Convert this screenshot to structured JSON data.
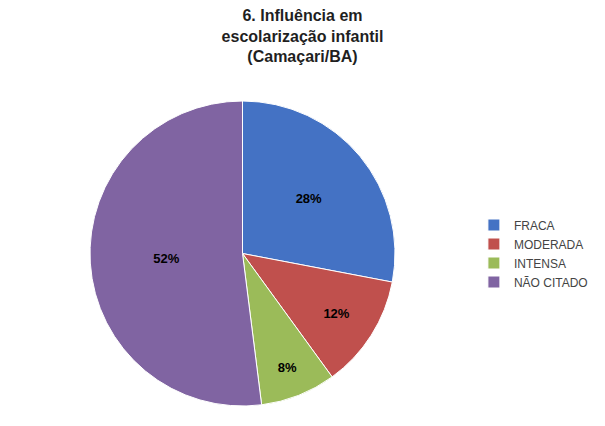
{
  "chart_data": {
    "type": "pie",
    "title": "6. Influência em\nescolarização infantil\n(Camaçari/BA)",
    "categories": [
      "FRACA",
      "MODERADA",
      "INTENSA",
      "NÃO CITADO"
    ],
    "values": [
      28,
      12,
      8,
      52
    ],
    "value_labels": [
      "28%",
      "12%",
      "8%",
      "52%"
    ],
    "colors": [
      "#4472C4",
      "#C0504D",
      "#9BBB59",
      "#8064A2"
    ],
    "data_labels": true,
    "legend": "right"
  }
}
